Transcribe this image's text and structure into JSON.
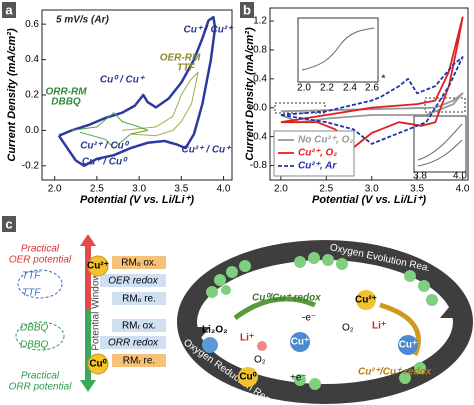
{
  "chart_data": [
    {
      "type": "line",
      "panel": "a",
      "xlabel": "Potential (V vs. Li/Li⁺)",
      "ylabel": "Current Density (mA/cm²)",
      "xlim": [
        1.85,
        4.1
      ],
      "ylim": [
        -0.28,
        0.68
      ],
      "xticks": [
        {
          "value": 2,
          "label": "2.0"
        },
        2.5,
        {
          "value": 3,
          "label": "3.0"
        },
        3.5,
        {
          "value": 4,
          "label": "4.0"
        }
      ],
      "yticks": [
        -0.2,
        {
          "value": 0,
          "label": "0.0"
        },
        0.2,
        0.4,
        0.6
      ],
      "annotations": [
        {
          "text": "5 mV/s (Ar)",
          "color": "#222222"
        },
        {
          "text": "Cu⁺ / Cu²⁺",
          "color": "#2b3a8f"
        },
        {
          "text": "Cu⁰ / Cu⁺",
          "color": "#2b3a8f"
        },
        {
          "text": "OER-RM",
          "color": "#8a8a2a"
        },
        {
          "text": "TTF",
          "color": "#8a8a2a"
        },
        {
          "text": "ORR-RM",
          "color": "#2f8a3a"
        },
        {
          "text": "DBBQ",
          "color": "#2f8a3a"
        },
        {
          "text": "Cu²⁺ / Cu⁰",
          "color": "#2b3a8f"
        },
        {
          "text": "Cu⁺ / Cu⁰",
          "color": "#2b3a8f"
        },
        {
          "text": "Cu²⁺ / Cu⁺",
          "color": "#2b3a8f"
        }
      ],
      "series": [
        {
          "color": "#2b3a9f",
          "width": 2.5,
          "x": [
            2.05,
            2.2,
            2.4,
            2.6,
            2.8,
            2.95,
            3.05,
            3.1,
            3.2,
            3.35,
            3.5,
            3.65,
            3.75,
            3.82,
            3.88,
            3.9,
            3.85,
            3.75,
            3.65,
            3.55,
            3.45,
            3.3,
            3.1,
            2.9,
            2.7,
            2.5,
            2.35,
            2.25,
            2.15,
            2.05
          ],
          "values": [
            -0.03,
            0.0,
            0.03,
            0.07,
            0.1,
            0.14,
            0.2,
            0.16,
            0.13,
            0.18,
            0.27,
            0.4,
            0.52,
            0.62,
            0.64,
            0.58,
            0.4,
            0.15,
            -0.02,
            -0.1,
            -0.08,
            -0.06,
            -0.07,
            -0.1,
            -0.14,
            -0.16,
            -0.2,
            -0.17,
            -0.1,
            -0.03
          ]
        },
        {
          "color": "#a8a84a",
          "width": 1,
          "x": [
            2.8,
            3.2,
            3.4,
            3.5,
            3.6,
            3.7,
            3.62,
            3.5,
            3.4,
            3.2,
            2.9
          ],
          "values": [
            0.0,
            0.02,
            0.08,
            0.2,
            0.28,
            0.33,
            0.15,
            0.05,
            0.0,
            -0.03,
            -0.02
          ]
        },
        {
          "color": "#4aa84a",
          "width": 1,
          "x": [
            2.2,
            2.5,
            2.7,
            2.8,
            3.0,
            3.1,
            2.9,
            2.7,
            2.6,
            2.3
          ],
          "values": [
            0.0,
            0.02,
            0.1,
            0.05,
            0.02,
            0.0,
            -0.02,
            -0.1,
            -0.05,
            -0.01
          ]
        }
      ]
    },
    {
      "type": "line",
      "panel": "b",
      "xlabel": "Potential (V vs. Li/Li⁺)",
      "ylabel": "Current Density (mA/cm²)",
      "xlim": [
        1.88,
        4.06
      ],
      "ylim": [
        -1.0,
        1.38
      ],
      "xticks": [
        {
          "value": 2,
          "label": "2.0"
        },
        2.5,
        {
          "value": 3,
          "label": "3.0"
        },
        3.5,
        {
          "value": 4,
          "label": "4.0"
        }
      ],
      "yticks": [
        -0.8,
        -0.4,
        {
          "value": 0,
          "label": "0.0"
        },
        0.4,
        0.8,
        1.2
      ],
      "legend": "lower left",
      "annotations": [
        {
          "text": "*",
          "color": "#2233aa"
        }
      ],
      "inset_ticks": [
        [
          "2.0",
          "2.2",
          "2.4",
          "2.6"
        ],
        [
          "3.8",
          "4.0"
        ]
      ],
      "series": [
        {
          "name": "No Cu²⁺, O₂",
          "color": "#999999",
          "dash": false,
          "x": [
            2.0,
            3.0,
            3.7,
            3.9,
            4.0,
            3.9,
            3.6,
            3.0,
            2.5,
            2.2,
            2.0
          ],
          "values": [
            -0.05,
            -0.02,
            0.0,
            0.1,
            0.2,
            0.05,
            -0.1,
            -0.1,
            -0.15,
            -0.2,
            -0.1
          ]
        },
        {
          "name": "Cu²⁺, O₂",
          "color": "#e02020",
          "dash": false,
          "x": [
            2.0,
            2.5,
            3.0,
            3.5,
            3.7,
            3.85,
            3.95,
            4.0,
            3.95,
            3.85,
            3.7,
            3.55,
            3.3,
            3.0,
            2.8,
            2.6,
            2.4,
            2.0
          ],
          "values": [
            -0.2,
            -0.1,
            0.0,
            0.05,
            0.1,
            0.5,
            1.0,
            1.25,
            0.9,
            0.3,
            -0.2,
            -0.25,
            -0.2,
            -0.35,
            -0.55,
            -0.3,
            -0.2,
            -0.2
          ]
        },
        {
          "name": "Cu²⁺, Ar",
          "color": "#2233aa",
          "dash": true,
          "x": [
            2.0,
            2.5,
            3.0,
            3.1,
            3.3,
            3.4,
            3.5,
            3.7,
            3.9,
            4.0,
            3.85,
            3.6,
            3.4,
            3.2,
            3.0,
            2.8,
            2.5,
            2.0
          ],
          "values": [
            -0.1,
            -0.05,
            0.1,
            0.15,
            0.3,
            0.4,
            0.2,
            0.3,
            0.6,
            0.7,
            0.3,
            -0.2,
            -0.3,
            -0.4,
            -0.5,
            -0.3,
            -0.2,
            -0.1
          ]
        }
      ]
    }
  ],
  "diagram": {
    "panel": "c",
    "oer_potential": [
      "Practical",
      "OER potential"
    ],
    "orr_potential": [
      "Practical",
      "ORR potential"
    ],
    "potential_window": "Potential Window",
    "left": {
      "cu2": "Cu²⁺",
      "cu0": "Cu⁰",
      "rmo_ox": "RMₒ ox.",
      "oer_redox": "OER redox",
      "rmo_re": "RMₒ re.",
      "rmr_ox": "RMᵣ ox.",
      "orr_redox": "ORR redox",
      "rmr_re": "RMᵣ re.",
      "ttf": [
        "TTF",
        "TTF"
      ],
      "dbbq": [
        "DBBQ",
        "DBBQ"
      ]
    },
    "cycle": {
      "oer": "Oxygen Evolution Rea.",
      "orr": "Oxygen Reduction Rea.",
      "cu01_redox": "Cu⁰/Cu⁺ redox",
      "minus_e": "-e⁻",
      "plus_e": "+e⁻",
      "li2o2": "Li₂O₂",
      "li_left": "Li⁺",
      "o2_left": "O₂",
      "cu1_left": "Cu⁺",
      "cu0": "Cu⁰",
      "cu2": "Cu²⁺",
      "o2_right": "O₂",
      "li_right": "Li⁺",
      "cu1_right": "Cu⁺",
      "cu21_redox": "Cu²⁺/Cu⁺ redox"
    }
  }
}
